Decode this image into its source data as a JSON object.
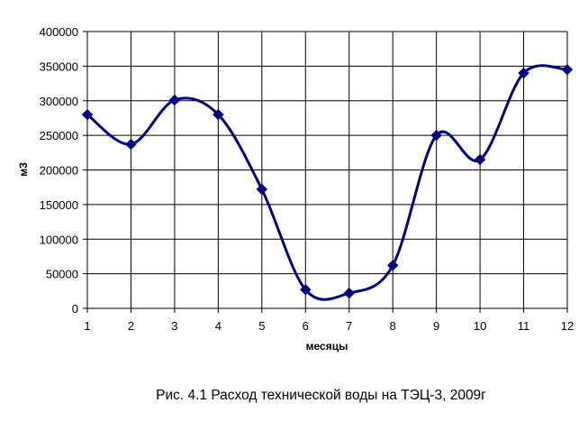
{
  "caption": "Рис. 4.1 Расход технической воды на ТЭЦ-3, 2009г",
  "chart_data": {
    "type": "line",
    "title": "",
    "xlabel": "месяцы",
    "ylabel": "м3",
    "x": [
      1,
      2,
      3,
      4,
      5,
      6,
      7,
      8,
      9,
      10,
      11,
      12
    ],
    "series": [
      {
        "values": [
          280000,
          237000,
          301000,
          280000,
          172000,
          27000,
          22000,
          62000,
          250000,
          215000,
          340000,
          345000
        ],
        "color": "#000080"
      }
    ],
    "xlim": [
      1,
      12
    ],
    "ylim": [
      0,
      400000
    ],
    "ystep": 50000,
    "yticks": [
      "0",
      "50000",
      "100000",
      "150000",
      "200000",
      "250000",
      "300000",
      "350000",
      "400000"
    ],
    "xticks": [
      "1",
      "2",
      "3",
      "4",
      "5",
      "6",
      "7",
      "8",
      "9",
      "10",
      "11",
      "12"
    ],
    "grid": true,
    "marker": "diamond",
    "smooth": true
  }
}
